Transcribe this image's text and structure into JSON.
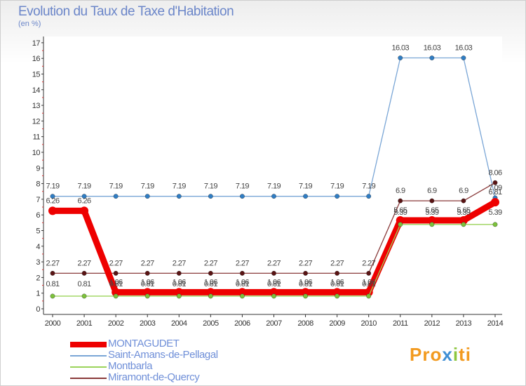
{
  "title": "Evolution du Taux de Taxe d'Habitation",
  "subtitle": "(en %)",
  "brand": {
    "p1": "Pro",
    "p2": "x",
    "p3": "i",
    "p4": "ti"
  },
  "chart_data": {
    "type": "line",
    "title": "Evolution du Taux de Taxe d'Habitation",
    "ylabel": "(en %)",
    "xlabel": "",
    "categories": [
      "2000",
      "2001",
      "2002",
      "2003",
      "2004",
      "2005",
      "2006",
      "2007",
      "2008",
      "2009",
      "2010",
      "2011",
      "2012",
      "2013",
      "2014"
    ],
    "ylim": [
      0,
      17
    ],
    "yticks": [
      "0",
      "1",
      "2",
      "3",
      "4",
      "5",
      "6",
      "7",
      "8",
      "9",
      "10",
      "11",
      "12",
      "13",
      "14",
      "15",
      "16",
      "17"
    ],
    "grid": false,
    "legend_position": "bottom-left",
    "series": [
      {
        "name": "MONTAGUDET",
        "color": "#ee0000",
        "marker_color": "#ee0000",
        "values": [
          6.26,
          6.26,
          1.06,
          1.06,
          1.06,
          1.06,
          1.06,
          1.06,
          1.06,
          1.06,
          1.06,
          5.65,
          5.65,
          5.65,
          6.81
        ],
        "labels": [
          "6.26",
          "6.26",
          "1.06",
          "1.06",
          "1.06",
          "1.06",
          "1.06",
          "1.06",
          "1.06",
          "1.06",
          "1.06",
          "5.65",
          "5.65",
          "5.65",
          "6.81"
        ]
      },
      {
        "name": "Saint-Amans-de-Pellagal",
        "color": "#7aa6d6",
        "marker_color": "#2f7dc4",
        "values": [
          7.19,
          7.19,
          7.19,
          7.19,
          7.19,
          7.19,
          7.19,
          7.19,
          7.19,
          7.19,
          7.19,
          16.03,
          16.03,
          16.03,
          7.09
        ],
        "labels": [
          "7.19",
          "7.19",
          "7.19",
          "7.19",
          "7.19",
          "7.19",
          "7.19",
          "7.19",
          "7.19",
          "7.19",
          "7.19",
          "16.03",
          "16.03",
          "16.03",
          "7.09"
        ]
      },
      {
        "name": "Montbarla",
        "color": "#9bd35a",
        "marker_color": "#7cc23a",
        "values": [
          0.81,
          0.81,
          0.81,
          0.81,
          0.81,
          0.81,
          0.81,
          0.81,
          0.81,
          0.81,
          0.81,
          5.39,
          5.39,
          5.39,
          5.39
        ],
        "labels": [
          "0.81",
          "0.81",
          "0.81",
          "0.81",
          "0.81",
          "0.81",
          "0.81",
          "0.81",
          "0.81",
          "0.81",
          "0.81",
          "5.39",
          "5.39",
          "5.39",
          "5.39"
        ]
      },
      {
        "name": "Miramont-de-Quercy",
        "color": "#8a3a3a",
        "marker_color": "#5a1414",
        "values": [
          2.27,
          2.27,
          2.27,
          2.27,
          2.27,
          2.27,
          2.27,
          2.27,
          2.27,
          2.27,
          2.27,
          6.9,
          6.9,
          6.9,
          8.06
        ],
        "labels": [
          "2.27",
          "2.27",
          "2.27",
          "2.27",
          "2.27",
          "2.27",
          "2.27",
          "2.27",
          "2.27",
          "2.27",
          "2.27",
          "6.9",
          "6.9",
          "6.9",
          "8.06"
        ]
      }
    ]
  }
}
